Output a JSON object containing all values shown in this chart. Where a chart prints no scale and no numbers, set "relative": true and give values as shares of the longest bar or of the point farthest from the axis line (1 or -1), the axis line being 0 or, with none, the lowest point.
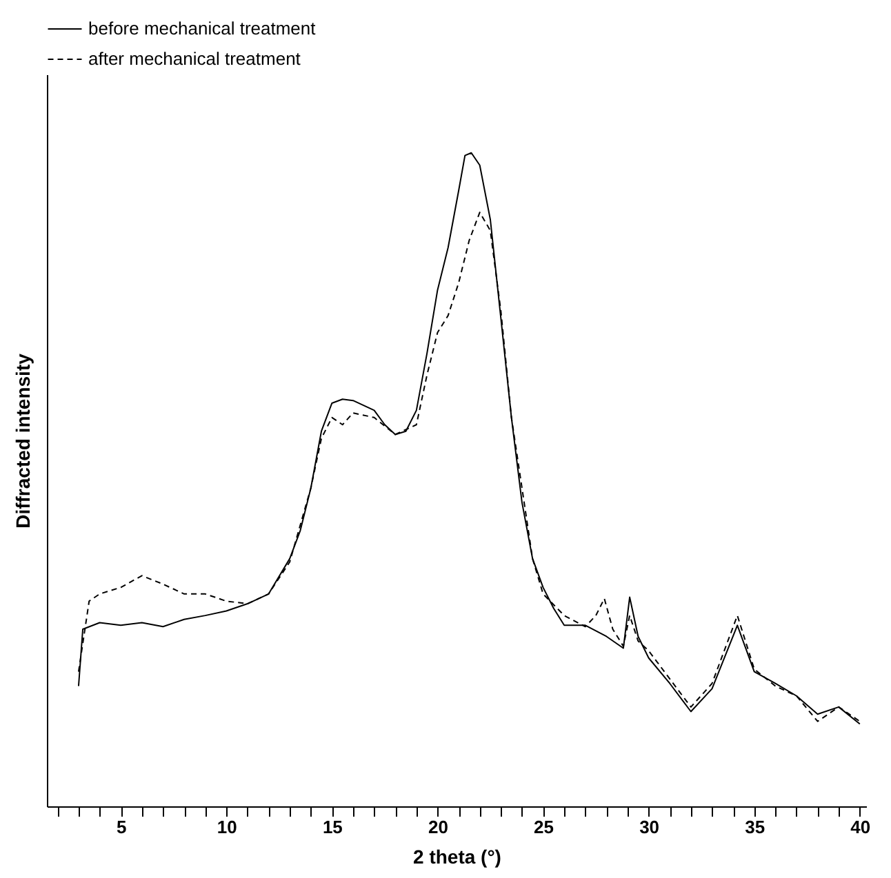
{
  "chart_data": {
    "type": "line",
    "xlabel": "2 theta (°)",
    "ylabel": "Diffracted intensity",
    "relative": true,
    "xlim": [
      1.5,
      40.3
    ],
    "xticks": [
      {
        "value": 2,
        "label": null
      },
      {
        "value": 3,
        "label": null
      },
      {
        "value": 4,
        "label": null
      },
      5,
      {
        "value": 6,
        "label": null
      },
      {
        "value": 7,
        "label": null
      },
      {
        "value": 8,
        "label": null
      },
      {
        "value": 9,
        "label": null
      },
      10,
      {
        "value": 11,
        "label": null
      },
      {
        "value": 12,
        "label": null
      },
      {
        "value": 13,
        "label": null
      },
      {
        "value": 14,
        "label": null
      },
      15,
      {
        "value": 16,
        "label": null
      },
      {
        "value": 17,
        "label": null
      },
      {
        "value": 18,
        "label": null
      },
      {
        "value": 19,
        "label": null
      },
      20,
      {
        "value": 21,
        "label": null
      },
      {
        "value": 22,
        "label": null
      },
      {
        "value": 23,
        "label": null
      },
      {
        "value": 24,
        "label": null
      },
      25,
      {
        "value": 26,
        "label": null
      },
      {
        "value": 27,
        "label": null
      },
      {
        "value": 28,
        "label": null
      },
      {
        "value": 29,
        "label": null
      },
      30,
      {
        "value": 31,
        "label": null
      },
      {
        "value": 32,
        "label": null
      },
      {
        "value": 33,
        "label": null
      },
      {
        "value": 34,
        "label": null
      },
      35,
      {
        "value": 36,
        "label": null
      },
      {
        "value": 37,
        "label": null
      },
      {
        "value": 38,
        "label": null
      },
      {
        "value": 39,
        "label": null
      },
      40
    ],
    "grid": false,
    "legend": "top left",
    "marker": "none",
    "series": [
      {
        "name": "before mechanical treatment",
        "color": "#000000",
        "line_style": "solid",
        "x": [
          3.0,
          3.2,
          4,
          5,
          6,
          7,
          8,
          9,
          10,
          11,
          12,
          13,
          13.5,
          14,
          14.5,
          15,
          15.5,
          16,
          17,
          17.5,
          18,
          18.5,
          19,
          19.5,
          20,
          20.5,
          21,
          21.3,
          21.6,
          22,
          22.5,
          23,
          23.5,
          24,
          24.5,
          25,
          25.5,
          26,
          27,
          28,
          28.8,
          29.1,
          29.5,
          30,
          31,
          32,
          33,
          34.2,
          35,
          36,
          37,
          38,
          39,
          40
        ],
        "values": [
          0.184,
          0.271,
          0.281,
          0.277,
          0.281,
          0.275,
          0.286,
          0.292,
          0.299,
          0.31,
          0.325,
          0.379,
          0.422,
          0.487,
          0.574,
          0.617,
          0.623,
          0.621,
          0.606,
          0.584,
          0.569,
          0.574,
          0.606,
          0.693,
          0.79,
          0.855,
          0.942,
          0.996,
          1,
          0.981,
          0.898,
          0.747,
          0.595,
          0.465,
          0.379,
          0.335,
          0.303,
          0.277,
          0.277,
          0.26,
          0.242,
          0.32,
          0.26,
          0.227,
          0.188,
          0.145,
          0.18,
          0.277,
          0.206,
          0.188,
          0.169,
          0.141,
          0.152,
          0.126
        ]
      },
      {
        "name": "after mechanical treatment",
        "color": "#000000",
        "line_style": "dashed",
        "x": [
          3.0,
          3.5,
          4,
          5,
          6,
          7,
          8,
          9,
          10,
          11,
          12,
          13,
          14,
          14.5,
          15,
          15.5,
          16,
          17,
          18,
          19,
          19.5,
          20,
          20.5,
          21,
          21.5,
          22,
          22.5,
          23,
          23.5,
          24,
          24.5,
          25,
          26,
          27,
          27.5,
          27.9,
          28.3,
          28.8,
          29.1,
          29.5,
          30,
          31,
          32,
          33,
          34.2,
          35,
          36,
          37,
          38,
          39,
          40
        ],
        "values": [
          0.206,
          0.314,
          0.325,
          0.335,
          0.353,
          0.34,
          0.325,
          0.325,
          0.314,
          0.31,
          0.325,
          0.374,
          0.487,
          0.563,
          0.595,
          0.584,
          0.602,
          0.595,
          0.569,
          0.584,
          0.66,
          0.725,
          0.751,
          0.801,
          0.866,
          0.909,
          0.881,
          0.758,
          0.595,
          0.487,
          0.379,
          0.325,
          0.292,
          0.275,
          0.292,
          0.318,
          0.271,
          0.245,
          0.292,
          0.253,
          0.238,
          0.195,
          0.152,
          0.188,
          0.292,
          0.21,
          0.184,
          0.169,
          0.13,
          0.152,
          0.13
        ]
      }
    ]
  }
}
